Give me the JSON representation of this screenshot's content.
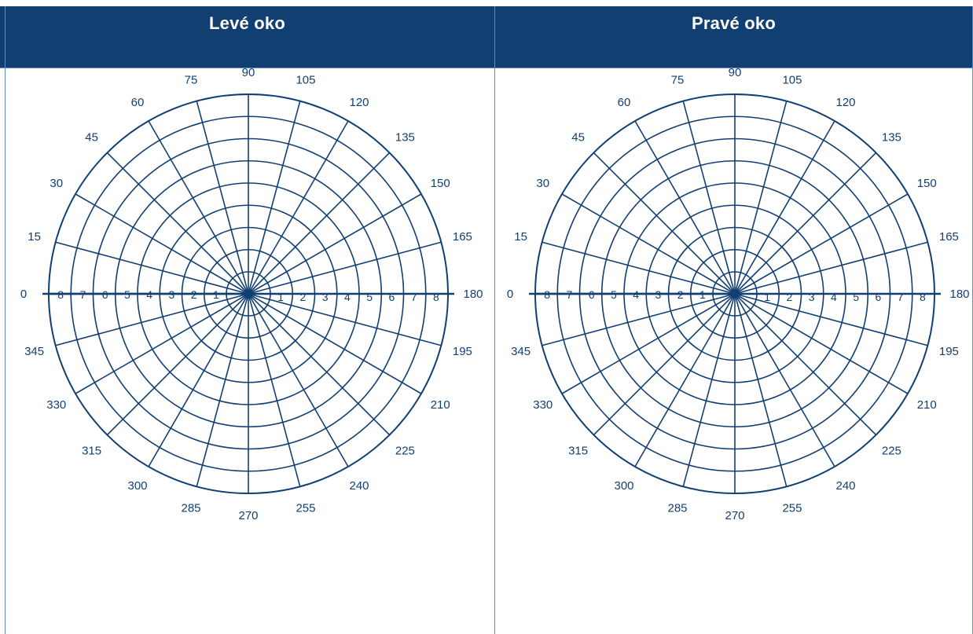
{
  "header": {
    "left_title": "Levé oko",
    "right_title": "Pravé oko"
  },
  "colors": {
    "header_bg": "#123f72",
    "header_text": "#ffffff",
    "grid_line": "#123f72",
    "cell_border": "#5b8fc6"
  },
  "polar_chart": {
    "angle_step_deg": 15,
    "angle_labels": [
      "0",
      "15",
      "30",
      "45",
      "60",
      "75",
      "90",
      "105",
      "120",
      "135",
      "150",
      "165",
      "180",
      "195",
      "210",
      "225",
      "240",
      "255",
      "270",
      "285",
      "300",
      "315",
      "330",
      "345"
    ],
    "ring_count": 9,
    "axis_numbers": [
      "1",
      "2",
      "3",
      "4",
      "5",
      "6",
      "7",
      "8"
    ]
  },
  "charts": [
    {
      "id": "left-eye"
    },
    {
      "id": "right-eye"
    }
  ]
}
